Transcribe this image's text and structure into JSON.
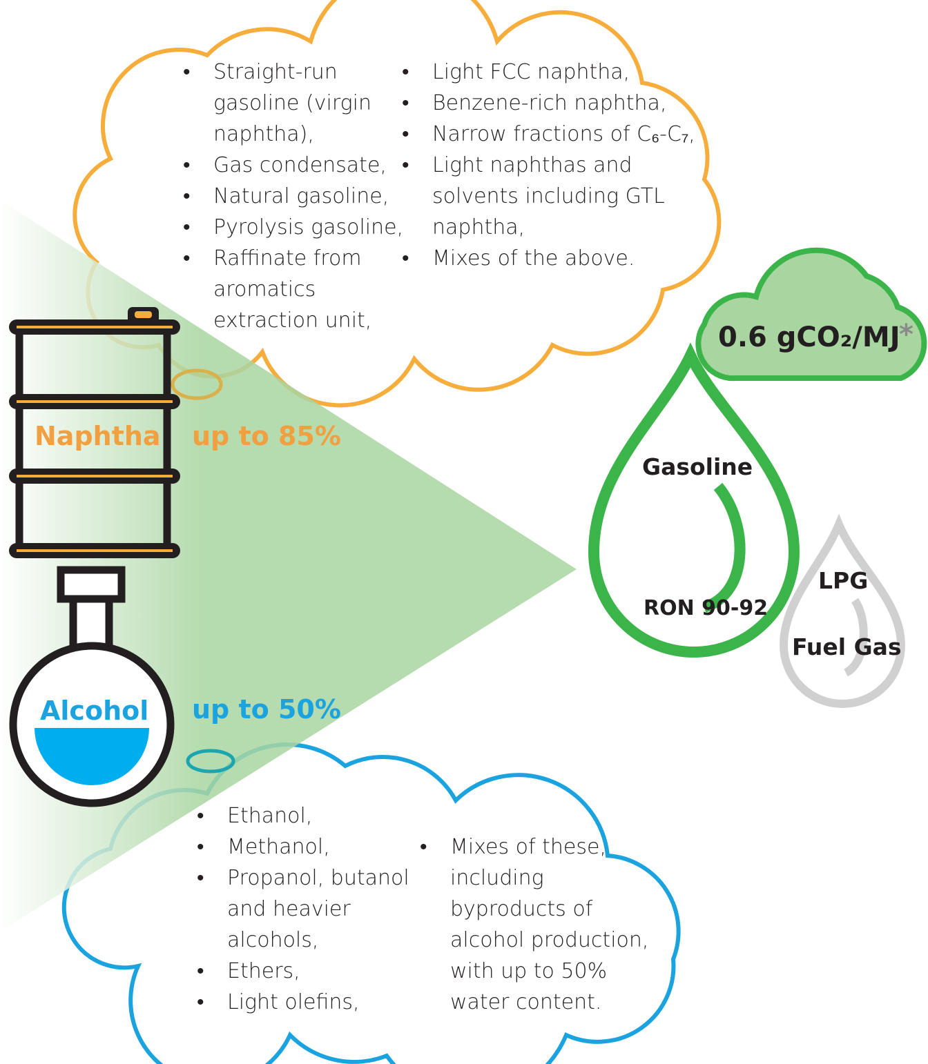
{
  "naphtha": {
    "label": "Naphtha",
    "share": "up to 85%",
    "feedstocks_left": [
      "Straight-run gasoline (virgin naphtha),",
      "Gas condensate,",
      "Natural gasoline,",
      "Pyrolysis gasoline,",
      "Raffinate from aromatics extraction unit,"
    ],
    "feedstocks_right": [
      "Light FCC naphtha,",
      "Benzene-rich naphtha,",
      "Narrow fractions of C₆-C₇,",
      "Light naphthas and solvents including GTL naphtha,",
      "Mixes of the above."
    ]
  },
  "alcohol": {
    "label": "Alcohol",
    "share": "up to 50%",
    "feedstocks_left": [
      "Ethanol,",
      "Methanol,",
      "Propanol, butanol and heavier alcohols,",
      "Ethers,",
      "Light olefins,"
    ],
    "feedstocks_right": [
      "Mixes of these, including byproducts of alcohol production, with up to 50% water content."
    ]
  },
  "product": {
    "name": "Gasoline",
    "grade": "RON 90-92",
    "byproducts": [
      "LPG",
      "Fuel Gas"
    ]
  },
  "emission": {
    "value": "0.6 gCO₂/MJ",
    "note": "*"
  }
}
